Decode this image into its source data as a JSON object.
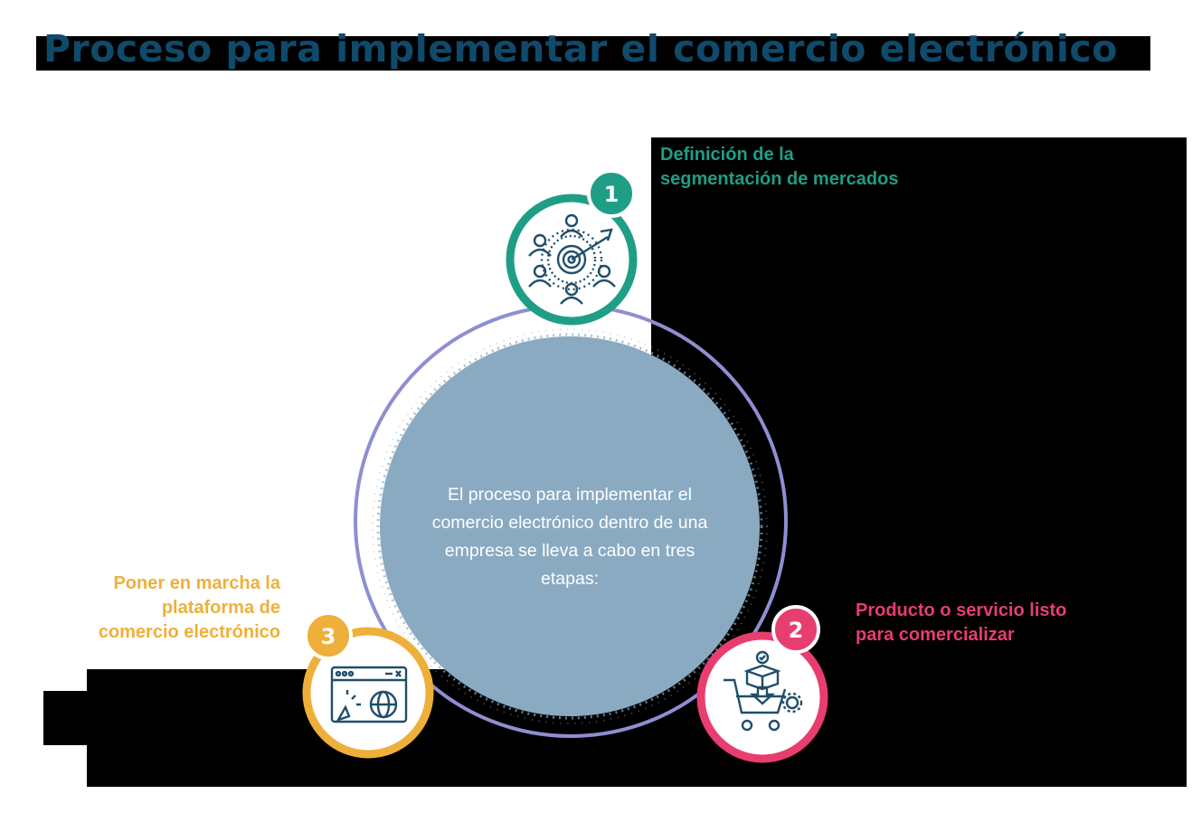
{
  "title": "Proceso para implementar el comercio electrónico",
  "center_text": "El proceso para implementar el comercio electrónico dentro de una empresa se lleva a cabo en tres etapas:",
  "stages": [
    {
      "number": "1",
      "label_line1": "Definición de la",
      "label_line2": "segmentación de mercados",
      "color": "#1f9e86",
      "icon": "target-audience-icon"
    },
    {
      "number": "2",
      "label_line1": "Producto o servicio listo",
      "label_line2": "para comercializar",
      "color": "#e83d6f",
      "icon": "shopping-cart-box-icon"
    },
    {
      "number": "3",
      "label_line1": "Poner en marcha la",
      "label_line2": "plataforma de",
      "label_line3": "comercio electrónico",
      "color": "#eeb03a",
      "icon": "web-browser-globe-icon"
    }
  ],
  "colors": {
    "title": "#0f4a6b",
    "ring": "#8f8ed0",
    "center_blob": "#8aaac1",
    "background_dark": "#000000"
  }
}
